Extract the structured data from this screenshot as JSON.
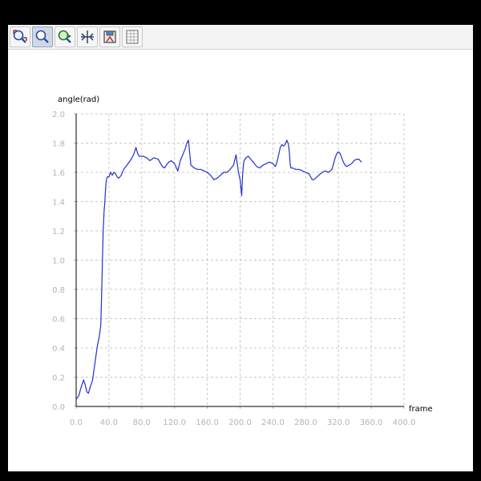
{
  "toolbar": {
    "buttons": [
      {
        "icon": "zoom-fit-icon",
        "active": false
      },
      {
        "icon": "zoom-icon",
        "active": true
      },
      {
        "icon": "pan-icon",
        "active": false
      },
      {
        "icon": "crosshair-icon",
        "active": false
      },
      {
        "icon": "save-icon",
        "active": false
      },
      {
        "icon": "grid-icon",
        "active": false
      }
    ]
  },
  "colors": {
    "series": "#2230cc",
    "grid": "#c8c8c8",
    "tick_label": "#b4b4b4",
    "axis": "#000000"
  },
  "chart_data": {
    "type": "line",
    "xlabel": "frame",
    "ylabel": "angle(rad)",
    "xlim": [
      0,
      400
    ],
    "ylim": [
      0,
      2.0
    ],
    "x_ticks": [
      "0.0",
      "40.0",
      "80.0",
      "120.0",
      "160.0",
      "200.0",
      "240.0",
      "280.0",
      "320.0",
      "360.0",
      "400.0"
    ],
    "y_ticks": [
      "0.0",
      "0.2",
      "0.4",
      "0.6",
      "0.8",
      "1.0",
      "1.2",
      "1.4",
      "1.6",
      "1.8",
      "2.0"
    ],
    "grid": true,
    "series": [
      {
        "x": [
          0,
          3,
          6,
          9,
          11,
          13,
          15,
          17,
          20,
          23,
          26,
          28,
          30,
          31,
          33,
          34,
          35,
          36,
          37,
          38,
          40,
          42,
          44,
          46,
          48,
          50,
          52,
          55,
          58,
          62,
          66,
          70,
          73,
          75,
          77,
          79,
          82,
          86,
          90,
          95,
          100,
          105,
          108,
          110,
          113,
          116,
          120,
          124,
          127,
          130,
          133,
          135,
          137,
          138,
          140,
          144,
          148,
          152,
          156,
          160,
          164,
          168,
          172,
          176,
          180,
          184,
          188,
          192,
          195,
          198,
          200,
          202,
          203,
          204,
          205,
          207,
          210,
          213,
          216,
          220,
          224,
          228,
          232,
          236,
          240,
          243,
          245,
          247,
          249,
          251,
          253,
          255,
          257,
          259,
          260,
          261,
          262,
          264,
          268,
          272,
          276,
          280,
          284,
          286,
          288,
          290,
          292,
          296,
          300,
          304,
          308,
          312,
          314,
          316,
          318,
          320,
          322,
          324,
          326,
          328,
          330,
          333,
          336,
          339,
          342,
          345,
          348
        ],
        "y": [
          0.05,
          0.07,
          0.13,
          0.18,
          0.15,
          0.1,
          0.09,
          0.13,
          0.18,
          0.3,
          0.42,
          0.47,
          0.55,
          0.75,
          1.2,
          1.33,
          1.4,
          1.5,
          1.55,
          1.57,
          1.57,
          1.6,
          1.58,
          1.6,
          1.59,
          1.57,
          1.56,
          1.58,
          1.62,
          1.65,
          1.68,
          1.72,
          1.77,
          1.73,
          1.71,
          1.71,
          1.71,
          1.7,
          1.68,
          1.7,
          1.69,
          1.64,
          1.63,
          1.65,
          1.67,
          1.68,
          1.66,
          1.61,
          1.68,
          1.72,
          1.76,
          1.8,
          1.82,
          1.76,
          1.65,
          1.63,
          1.62,
          1.62,
          1.61,
          1.6,
          1.58,
          1.55,
          1.56,
          1.58,
          1.6,
          1.6,
          1.62,
          1.65,
          1.72,
          1.6,
          1.55,
          1.44,
          1.58,
          1.65,
          1.68,
          1.7,
          1.71,
          1.69,
          1.67,
          1.64,
          1.63,
          1.65,
          1.66,
          1.67,
          1.66,
          1.64,
          1.67,
          1.72,
          1.77,
          1.79,
          1.78,
          1.79,
          1.82,
          1.79,
          1.74,
          1.66,
          1.63,
          1.63,
          1.62,
          1.62,
          1.61,
          1.6,
          1.59,
          1.57,
          1.55,
          1.55,
          1.56,
          1.58,
          1.6,
          1.61,
          1.6,
          1.62,
          1.66,
          1.7,
          1.73,
          1.74,
          1.73,
          1.7,
          1.67,
          1.65,
          1.64,
          1.65,
          1.66,
          1.68,
          1.69,
          1.69,
          1.67
        ]
      }
    ]
  }
}
